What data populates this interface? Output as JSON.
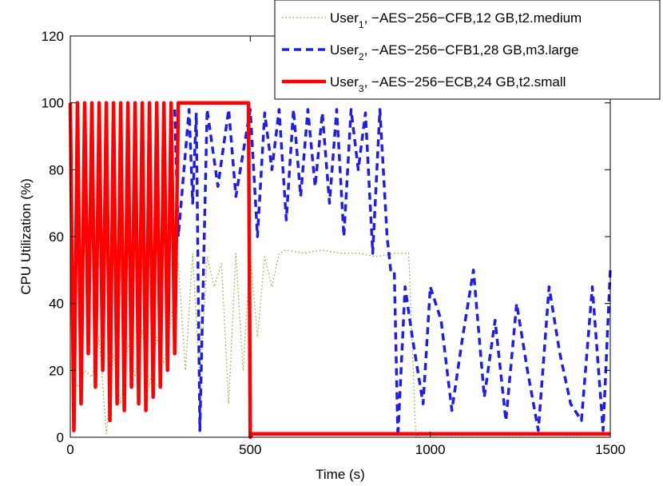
{
  "chart_data": {
    "type": "line",
    "xlabel": "Time (s)",
    "ylabel": "CPU Utilization (%)",
    "xlim": [
      0,
      1500
    ],
    "ylim": [
      0,
      120
    ],
    "xticks": [
      0,
      500,
      1000,
      1500
    ],
    "yticks": [
      0,
      20,
      40,
      60,
      80,
      100,
      120
    ],
    "grid": false,
    "legend_position": "top-right",
    "series": [
      {
        "name": "User1, −AES−256−CFB,12 GB,t2.medium",
        "name_base": "User",
        "name_sub": "1",
        "name_rest": ", −AES−256−CFB,12 GB,t2.medium",
        "color": "#77ac30",
        "style": "dotted",
        "x": [
          0,
          20,
          40,
          60,
          80,
          100,
          120,
          140,
          160,
          180,
          200,
          220,
          240,
          260,
          280,
          300,
          320,
          340,
          360,
          380,
          400,
          420,
          440,
          460,
          480,
          500,
          520,
          540,
          560,
          580,
          600,
          650,
          700,
          750,
          800,
          850,
          900,
          940,
          960,
          1000,
          1050,
          1100,
          1150,
          1200,
          1250,
          1300,
          1350,
          1400,
          1450,
          1500
        ],
        "y": [
          22,
          15,
          20,
          18,
          30,
          1,
          25,
          10,
          28,
          18,
          32,
          15,
          30,
          22,
          35,
          52,
          20,
          55,
          15,
          54,
          45,
          52,
          10,
          55,
          20,
          55,
          30,
          54,
          45,
          55,
          56,
          55,
          56,
          55,
          55,
          54,
          55,
          55,
          0,
          0,
          0,
          0,
          0,
          0,
          0,
          0,
          0,
          0,
          0,
          0
        ]
      },
      {
        "name": "User2, −AES−256−CFB1,28 GB,m3.large",
        "name_base": "User",
        "name_sub": "2",
        "name_rest": ", −AES−256−CFB1,28 GB,m3.large",
        "color": "#1f1fdd",
        "style": "dashed",
        "x": [
          290,
          300,
          330,
          340,
          350,
          360,
          380,
          410,
          440,
          460,
          500,
          520,
          540,
          560,
          580,
          600,
          620,
          640,
          660,
          680,
          700,
          720,
          740,
          760,
          780,
          800,
          820,
          840,
          860,
          880,
          890,
          900,
          910,
          930,
          950,
          980,
          1000,
          1030,
          1060,
          1090,
          1120,
          1150,
          1180,
          1210,
          1240,
          1270,
          1300,
          1330,
          1360,
          1390,
          1420,
          1450,
          1480,
          1500
        ],
        "y": [
          98,
          60,
          98,
          70,
          97,
          2,
          98,
          75,
          98,
          72,
          98,
          60,
          97,
          80,
          98,
          65,
          98,
          72,
          98,
          75,
          97,
          70,
          98,
          60,
          98,
          80,
          97,
          55,
          98,
          60,
          50,
          50,
          0,
          45,
          30,
          10,
          45,
          35,
          8,
          30,
          50,
          12,
          35,
          5,
          40,
          20,
          2,
          45,
          25,
          10,
          5,
          45,
          2,
          50
        ]
      },
      {
        "name": "User3, −AES−256−ECB,24 GB,t2.small",
        "name_base": "User",
        "name_sub": "3",
        "name_rest": ", −AES−256−ECB,24 GB,t2.small",
        "color": "#ff0000",
        "style": "solid",
        "x": [
          0,
          10,
          20,
          30,
          40,
          50,
          60,
          70,
          80,
          90,
          100,
          110,
          120,
          130,
          140,
          150,
          160,
          170,
          180,
          190,
          200,
          210,
          220,
          230,
          240,
          250,
          260,
          270,
          280,
          290,
          300,
          400,
          495,
          500,
          505,
          520,
          600,
          700,
          800,
          900,
          1000,
          1100,
          1200,
          1300,
          1400,
          1470,
          1500
        ],
        "y": [
          100,
          2,
          100,
          10,
          100,
          25,
          100,
          15,
          100,
          20,
          100,
          5,
          100,
          10,
          100,
          8,
          100,
          15,
          100,
          10,
          100,
          8,
          100,
          12,
          100,
          15,
          100,
          20,
          100,
          25,
          100,
          100,
          100,
          0,
          1,
          1,
          1,
          1,
          1,
          1,
          1,
          1,
          1,
          1,
          1,
          1,
          1
        ]
      }
    ]
  }
}
